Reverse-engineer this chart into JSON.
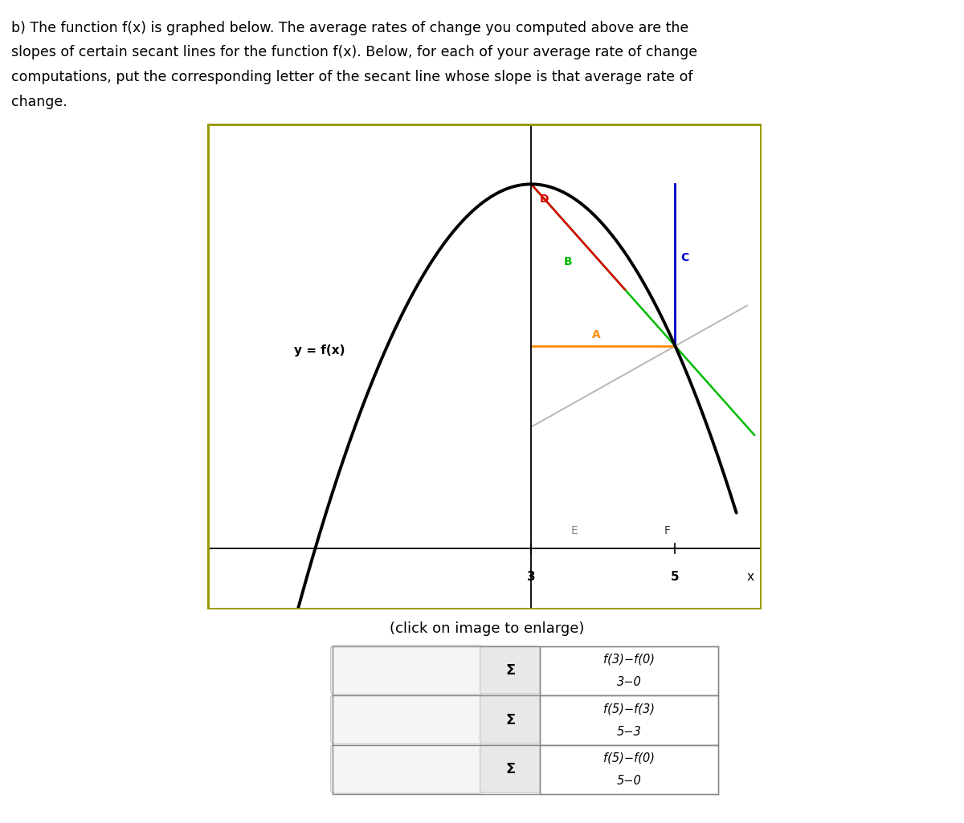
{
  "title_lines": [
    "b) The function f(x) is graphed below. The average rates of change you computed above are the",
    "slopes of certain secant lines for the function f(x). Below, for each of your average rate of change",
    "computations, put the corresponding letter of the secant line whose slope is that average rate of",
    "change."
  ],
  "graph_label": "y = f(x)",
  "click_text": "(click on image to enlarge)",
  "border_color": "#999900",
  "func_color": "#000000",
  "line_A_color": "#FF8C00",
  "line_B_color": "#00BB00",
  "line_C_color": "#0000CC",
  "line_D_color": "#DD0000",
  "line_gray_color": "#BBBBBB",
  "label_A_color": "#FF8C00",
  "label_B_color": "#00BB00",
  "label_C_color": "#0000CC",
  "label_D_color": "#DD0000",
  "label_E_color": "#888888",
  "label_F_color": "#333333",
  "formulas": [
    {
      "num": "f(3)−f(0)",
      "den": "3−0"
    },
    {
      "num": "f(5)−f(3)",
      "den": "5−3"
    },
    {
      "num": "f(5)−f(0)",
      "den": "5−0"
    }
  ],
  "xmin": -1.5,
  "xmax": 6.2,
  "ymin": -1.5,
  "ymax": 10.5
}
